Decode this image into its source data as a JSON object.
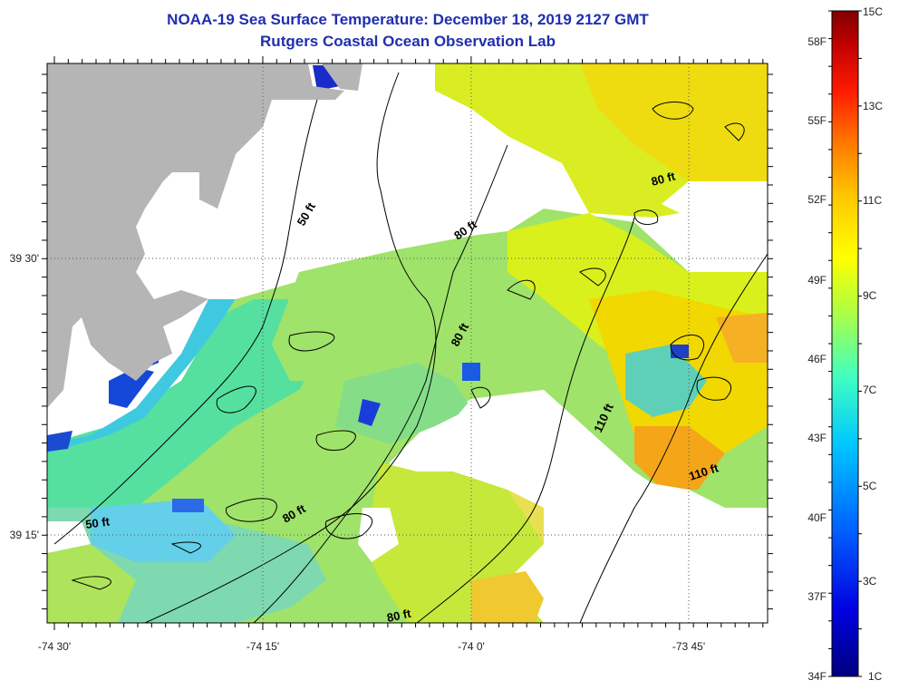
{
  "header": {
    "title": "NOAA-19 Sea Surface Temperature:  December 18, 2019 2127 GMT",
    "subtitle": "Rutgers Coastal Ocean Observation Lab"
  },
  "axes": {
    "x_ticks": [
      {
        "label": "-74 30'",
        "lon": -74.5
      },
      {
        "label": "-74 15'",
        "lon": -74.25
      },
      {
        "label": "-74 0'",
        "lon": -74.0
      },
      {
        "label": "-73 45'",
        "lon": -73.75
      }
    ],
    "y_ticks": [
      {
        "label": "39 30'",
        "lat": 39.5
      },
      {
        "label": "39 15'",
        "lat": 39.25
      }
    ]
  },
  "contours": {
    "labels": [
      "50 ft",
      "50 ft",
      "80 ft",
      "80 ft",
      "80 ft",
      "80 ft",
      "80 ft",
      "110 ft",
      "110 ft"
    ]
  },
  "colorbar": {
    "celsius": [
      "15C",
      "13C",
      "11C",
      "9C",
      "7C",
      "5C",
      "3C",
      "1C"
    ],
    "fahrenheit": [
      "58F",
      "55F",
      "52F",
      "49F",
      "46F",
      "43F",
      "40F",
      "37F",
      "34F"
    ],
    "colors": [
      "#7f0000",
      "#c00000",
      "#ff1a00",
      "#ff7a00",
      "#ffc800",
      "#ffff00",
      "#b0ff40",
      "#40ffc0",
      "#00c8ff",
      "#0060ff",
      "#0000c8",
      "#00007f"
    ]
  },
  "colors": {
    "land": "#b5b5b5",
    "no_data": "#ffffff",
    "title": "#1f2fae"
  }
}
